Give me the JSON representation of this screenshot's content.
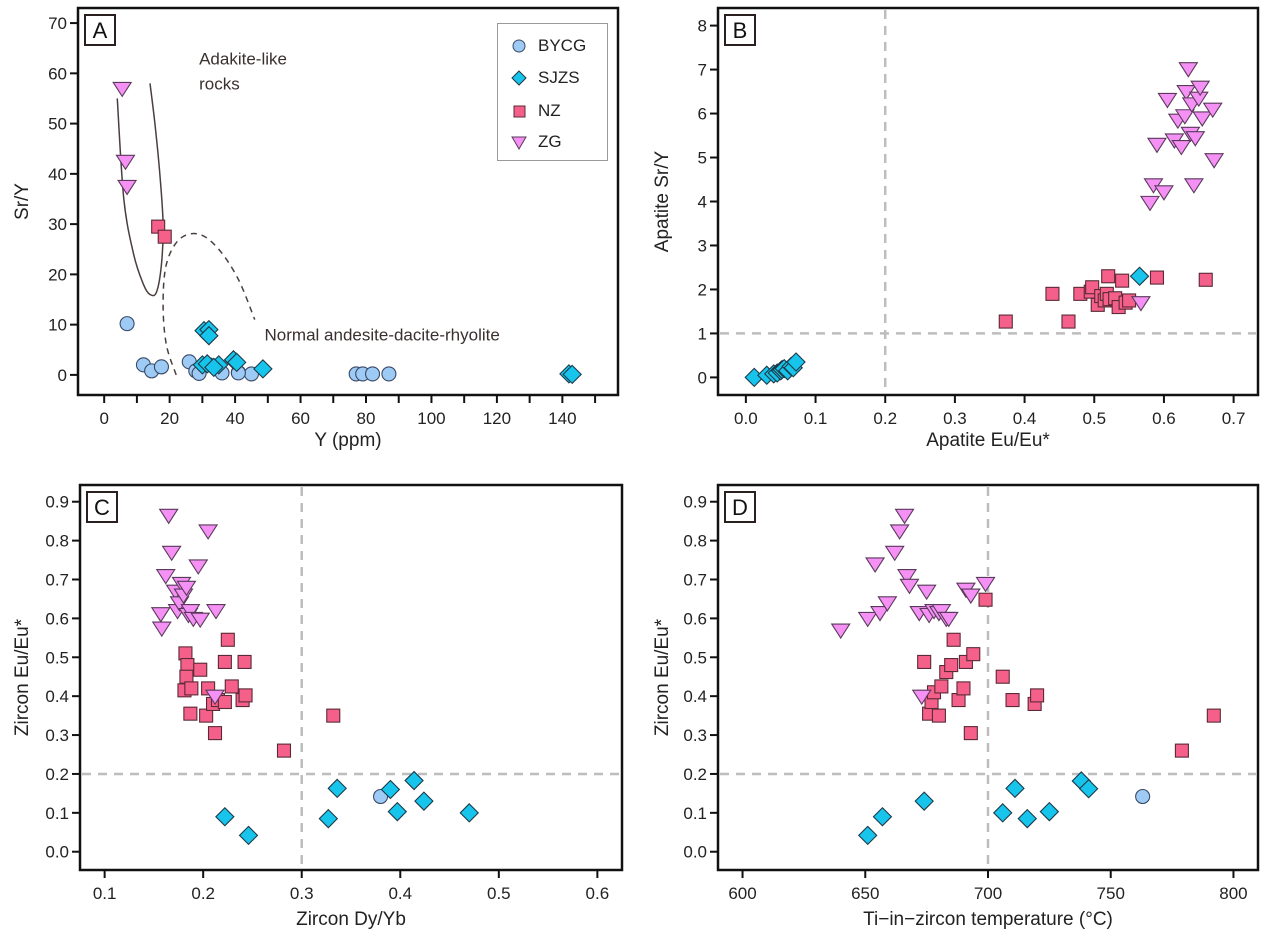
{
  "colors": {
    "BYCG": "#9ecbf5",
    "SJZS": "#17c4ec",
    "NZ": "#f5608a",
    "ZG": "#f591f5",
    "reference_line": "#bdbdbd",
    "field_line": "#4a3f3f"
  },
  "legend": {
    "placement": "top-right of panel A",
    "entries": [
      {
        "name": "BYCG",
        "marker": "circle"
      },
      {
        "name": "SJZS",
        "marker": "diamond"
      },
      {
        "name": "NZ",
        "marker": "square"
      },
      {
        "name": "ZG",
        "marker": "triangle-down"
      }
    ]
  },
  "chart_data": [
    {
      "panel": "A",
      "type": "scatter",
      "xlabel": "Y (ppm)",
      "ylabel": "Sr/Y",
      "xlim": [
        -8,
        157
      ],
      "ylim": [
        -4,
        73
      ],
      "xticks": [
        0,
        20,
        40,
        60,
        80,
        100,
        120,
        140
      ],
      "xminor": [
        10,
        30,
        50,
        70,
        90,
        110,
        130,
        150
      ],
      "yticks": [
        0,
        10,
        20,
        30,
        40,
        50,
        60,
        70
      ],
      "annotations": [
        {
          "text": "Adakite-like",
          "x": 29,
          "y": 63
        },
        {
          "text": "rocks",
          "x": 29,
          "y": 58
        },
        {
          "text": "Normal andesite-dacite-rhyolite",
          "x": 49,
          "y": 8
        }
      ],
      "fields": [
        {
          "name": "adakite-field",
          "style": "solid",
          "path": [
            [
              4,
              55
            ],
            [
              6,
              35
            ],
            [
              9,
              24
            ],
            [
              12,
              18
            ],
            [
              14,
              16
            ],
            [
              16,
              16.5
            ],
            [
              17.5,
              22
            ],
            [
              18,
              30
            ],
            [
              17,
              40
            ],
            [
              15.5,
              50
            ],
            [
              14,
              58
            ]
          ]
        },
        {
          "name": "normal-field",
          "style": "dashed",
          "path": [
            [
              22,
              0
            ],
            [
              19,
              6
            ],
            [
              18,
              14
            ],
            [
              19,
              22
            ],
            [
              23,
              27
            ],
            [
              29,
              28
            ],
            [
              35,
              25
            ],
            [
              41,
              19
            ],
            [
              46,
              11
            ]
          ]
        }
      ],
      "series": [
        {
          "name": "BYCG",
          "points": [
            [
              7,
              10.2
            ],
            [
              12,
              2
            ],
            [
              14.5,
              0.8
            ],
            [
              17.5,
              1.6
            ],
            [
              26,
              2.6
            ],
            [
              28,
              0.8
            ],
            [
              29,
              0.3
            ],
            [
              32,
              2
            ],
            [
              36,
              0.4
            ],
            [
              41,
              0.5
            ],
            [
              45,
              0.2
            ],
            [
              41,
              0.4
            ],
            [
              77,
              0.2
            ],
            [
              79,
              0.2
            ],
            [
              82,
              0.2
            ],
            [
              87,
              0.2
            ]
          ]
        },
        {
          "name": "SJZS",
          "points": [
            [
              30.5,
              8.8
            ],
            [
              32,
              9
            ],
            [
              32,
              7.8
            ],
            [
              30,
              2
            ],
            [
              31.5,
              2.2
            ],
            [
              35,
              2
            ],
            [
              39.5,
              3
            ],
            [
              40.5,
              2.5
            ],
            [
              48.5,
              1.2
            ],
            [
              33.5,
              1.5
            ],
            [
              142,
              0.2
            ],
            [
              143,
              0.1
            ]
          ]
        },
        {
          "name": "NZ",
          "points": [
            [
              16.5,
              29.5
            ],
            [
              18.5,
              27.5
            ]
          ]
        },
        {
          "name": "ZG",
          "points": [
            [
              5.5,
              57
            ],
            [
              6.5,
              42.5
            ],
            [
              7,
              37.5
            ]
          ]
        }
      ]
    },
    {
      "panel": "B",
      "type": "scatter",
      "xlabel": "Apatite Eu/Eu*",
      "ylabel": "Apatite Sr/Y",
      "xlim": [
        -0.04,
        0.735
      ],
      "ylim": [
        -0.4,
        8.4
      ],
      "xticks": [
        0.0,
        0.1,
        0.2,
        0.3,
        0.4,
        0.5,
        0.6,
        0.7
      ],
      "yticks": [
        0,
        1,
        2,
        3,
        4,
        5,
        6,
        7,
        8
      ],
      "ref_lines": {
        "x": 0.2,
        "y": 1
      },
      "series": [
        {
          "name": "BYCG",
          "points": []
        },
        {
          "name": "SJZS",
          "points": [
            [
              0.012,
              0.0
            ],
            [
              0.03,
              0.05
            ],
            [
              0.04,
              0.08
            ],
            [
              0.045,
              0.1
            ],
            [
              0.05,
              0.15
            ],
            [
              0.052,
              0.18
            ],
            [
              0.055,
              0.2
            ],
            [
              0.06,
              0.15
            ],
            [
              0.065,
              0.25
            ],
            [
              0.068,
              0.22
            ],
            [
              0.072,
              0.35
            ],
            [
              0.565,
              2.3
            ]
          ]
        },
        {
          "name": "NZ",
          "points": [
            [
              0.373,
              1.27
            ],
            [
              0.44,
              1.9
            ],
            [
              0.463,
              1.27
            ],
            [
              0.48,
              1.9
            ],
            [
              0.495,
              1.95
            ],
            [
              0.497,
              2.05
            ],
            [
              0.505,
              1.65
            ],
            [
              0.51,
              1.85
            ],
            [
              0.515,
              1.75
            ],
            [
              0.518,
              1.9
            ],
            [
              0.52,
              2.3
            ],
            [
              0.522,
              1.78
            ],
            [
              0.53,
              1.8
            ],
            [
              0.535,
              1.6
            ],
            [
              0.54,
              2.2
            ],
            [
              0.545,
              1.7
            ],
            [
              0.55,
              1.75
            ],
            [
              0.59,
              2.27
            ],
            [
              0.66,
              2.22
            ]
          ]
        },
        {
          "name": "ZG",
          "points": [
            [
              0.567,
              1.7
            ],
            [
              0.58,
              3.98
            ],
            [
              0.585,
              4.38
            ],
            [
              0.59,
              5.3
            ],
            [
              0.6,
              4.22
            ],
            [
              0.605,
              6.32
            ],
            [
              0.615,
              5.4
            ],
            [
              0.62,
              5.85
            ],
            [
              0.625,
              5.25
            ],
            [
              0.63,
              5.95
            ],
            [
              0.632,
              6.5
            ],
            [
              0.635,
              7.02
            ],
            [
              0.638,
              5.55
            ],
            [
              0.64,
              6.22
            ],
            [
              0.643,
              4.38
            ],
            [
              0.645,
              5.45
            ],
            [
              0.65,
              6.35
            ],
            [
              0.652,
              6.6
            ],
            [
              0.655,
              5.9
            ],
            [
              0.67,
              6.1
            ],
            [
              0.672,
              4.95
            ]
          ]
        }
      ]
    },
    {
      "panel": "C",
      "type": "scatter",
      "xlabel": "Zircon Dy/Yb",
      "ylabel": "Zircon Eu/Eu*",
      "xlim": [
        0.075,
        0.625
      ],
      "ylim": [
        -0.047,
        0.943
      ],
      "xticks": [
        0.1,
        0.2,
        0.3,
        0.4,
        0.5,
        0.6
      ],
      "yticks": [
        0.0,
        0.1,
        0.2,
        0.3,
        0.4,
        0.5,
        0.6,
        0.7,
        0.8,
        0.9
      ],
      "ref_lines": {
        "x": 0.3,
        "y": 0.2
      },
      "series": [
        {
          "name": "BYCG",
          "points": [
            [
              0.38,
              0.142
            ]
          ]
        },
        {
          "name": "SJZS",
          "points": [
            [
              0.222,
              0.09
            ],
            [
              0.246,
              0.042
            ],
            [
              0.327,
              0.085
            ],
            [
              0.336,
              0.163
            ],
            [
              0.39,
              0.16
            ],
            [
              0.397,
              0.103
            ],
            [
              0.414,
              0.183
            ],
            [
              0.424,
              0.13
            ],
            [
              0.47,
              0.1
            ]
          ]
        },
        {
          "name": "NZ",
          "points": [
            [
              0.182,
              0.51
            ],
            [
              0.184,
              0.48
            ],
            [
              0.183,
              0.45
            ],
            [
              0.181,
              0.415
            ],
            [
              0.188,
              0.42
            ],
            [
              0.187,
              0.355
            ],
            [
              0.197,
              0.468
            ],
            [
              0.203,
              0.35
            ],
            [
              0.205,
              0.42
            ],
            [
              0.21,
              0.38
            ],
            [
              0.212,
              0.305
            ],
            [
              0.215,
              0.39
            ],
            [
              0.222,
              0.385
            ],
            [
              0.222,
              0.488
            ],
            [
              0.225,
              0.545
            ],
            [
              0.229,
              0.425
            ],
            [
              0.24,
              0.39
            ],
            [
              0.242,
              0.488
            ],
            [
              0.243,
              0.402
            ],
            [
              0.282,
              0.26
            ],
            [
              0.332,
              0.35
            ]
          ]
        },
        {
          "name": "ZG",
          "points": [
            [
              0.157,
              0.612
            ],
            [
              0.158,
              0.575
            ],
            [
              0.162,
              0.71
            ],
            [
              0.165,
              0.865
            ],
            [
              0.168,
              0.77
            ],
            [
              0.172,
              0.67
            ],
            [
              0.174,
              0.62
            ],
            [
              0.176,
              0.64
            ],
            [
              0.178,
              0.69
            ],
            [
              0.18,
              0.66
            ],
            [
              0.183,
              0.68
            ],
            [
              0.185,
              0.61
            ],
            [
              0.187,
              0.62
            ],
            [
              0.19,
              0.6
            ],
            [
              0.197,
              0.598
            ],
            [
              0.195,
              0.735
            ],
            [
              0.205,
              0.825
            ],
            [
              0.213,
              0.62
            ],
            [
              0.212,
              0.4
            ]
          ]
        }
      ]
    },
    {
      "panel": "D",
      "type": "scatter",
      "xlabel": "Ti−in−zircon temperature (°C)",
      "ylabel": "Zircon Eu/Eu*",
      "xlim": [
        590,
        810
      ],
      "ylim": [
        -0.047,
        0.943
      ],
      "xticks": [
        600,
        650,
        700,
        750,
        800
      ],
      "yticks": [
        0.0,
        0.1,
        0.2,
        0.3,
        0.4,
        0.5,
        0.6,
        0.7,
        0.8,
        0.9
      ],
      "ref_lines": {
        "x": 700,
        "y": 0.2
      },
      "series": [
        {
          "name": "BYCG",
          "points": [
            [
              763,
              0.142
            ]
          ]
        },
        {
          "name": "SJZS",
          "points": [
            [
              651,
              0.042
            ],
            [
              657,
              0.09
            ],
            [
              674,
              0.13
            ],
            [
              706,
              0.1
            ],
            [
              711,
              0.163
            ],
            [
              716,
              0.085
            ],
            [
              725,
              0.103
            ],
            [
              738,
              0.182
            ],
            [
              741,
              0.162
            ]
          ]
        },
        {
          "name": "NZ",
          "points": [
            [
              674,
              0.488
            ],
            [
              676,
              0.355
            ],
            [
              677,
              0.385
            ],
            [
              678,
              0.41
            ],
            [
              680,
              0.35
            ],
            [
              681,
              0.425
            ],
            [
              683,
              0.462
            ],
            [
              685,
              0.48
            ],
            [
              686,
              0.545
            ],
            [
              688,
              0.39
            ],
            [
              690,
              0.42
            ],
            [
              691,
              0.488
            ],
            [
              693,
              0.305
            ],
            [
              694,
              0.508
            ],
            [
              699,
              0.648
            ],
            [
              706,
              0.45
            ],
            [
              710,
              0.39
            ],
            [
              719,
              0.38
            ],
            [
              720,
              0.402
            ],
            [
              779,
              0.26
            ],
            [
              792,
              0.35
            ]
          ]
        },
        {
          "name": "ZG",
          "points": [
            [
              640,
              0.57
            ],
            [
              651,
              0.6
            ],
            [
              654,
              0.74
            ],
            [
              656,
              0.615
            ],
            [
              659,
              0.64
            ],
            [
              662,
              0.77
            ],
            [
              664,
              0.825
            ],
            [
              666,
              0.865
            ],
            [
              667,
              0.71
            ],
            [
              668,
              0.685
            ],
            [
              672,
              0.615
            ],
            [
              675,
              0.67
            ],
            [
              676,
              0.61
            ],
            [
              678,
              0.62
            ],
            [
              680,
              0.615
            ],
            [
              681,
              0.62
            ],
            [
              683,
              0.6
            ],
            [
              684,
              0.6
            ],
            [
              691,
              0.675
            ],
            [
              693,
              0.66
            ],
            [
              699,
              0.69
            ],
            [
              673,
              0.4
            ]
          ]
        }
      ]
    }
  ]
}
